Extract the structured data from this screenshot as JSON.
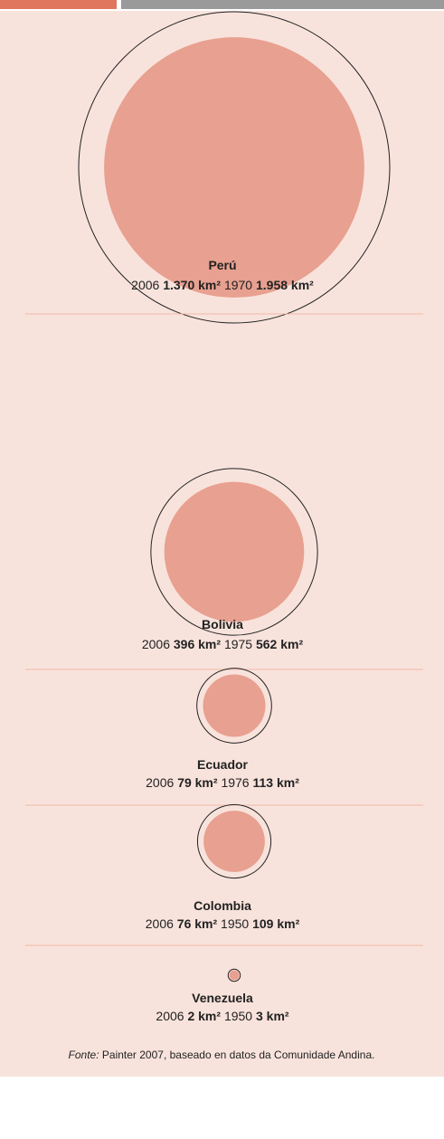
{
  "chart_data": {
    "type": "proportional-circle",
    "fill_color": "#e8a090",
    "outline_color": "#222222",
    "background": "#f8e3dc",
    "items": [
      {
        "name": "Perú",
        "year_now": "2006",
        "now": 1370,
        "now_label": "1.370 km²",
        "year_then": "1970",
        "then": 1958,
        "then_label": "1.958 km²"
      },
      {
        "name": "Bolivia",
        "year_now": "2006",
        "now": 396,
        "now_label": "396 km²",
        "year_then": "1975",
        "then": 562,
        "then_label": "562 km²"
      },
      {
        "name": "Ecuador",
        "year_now": "2006",
        "now": 79,
        "now_label": "79 km²",
        "year_then": "1976",
        "then": 113,
        "then_label": "113 km²"
      },
      {
        "name": "Colombia",
        "year_now": "2006",
        "now": 76,
        "now_label": "76 km²",
        "year_then": "1950",
        "then": 109,
        "then_label": "109 km²"
      },
      {
        "name": "Venezuela",
        "year_now": "2006",
        "now": 2,
        "now_label": "2 km²",
        "year_then": "1950",
        "then": 3,
        "then_label": "3 km²"
      }
    ],
    "source_prefix": "Fonte:",
    "source": "Painter 2007, baseado en datos da Comunidade Andina."
  }
}
